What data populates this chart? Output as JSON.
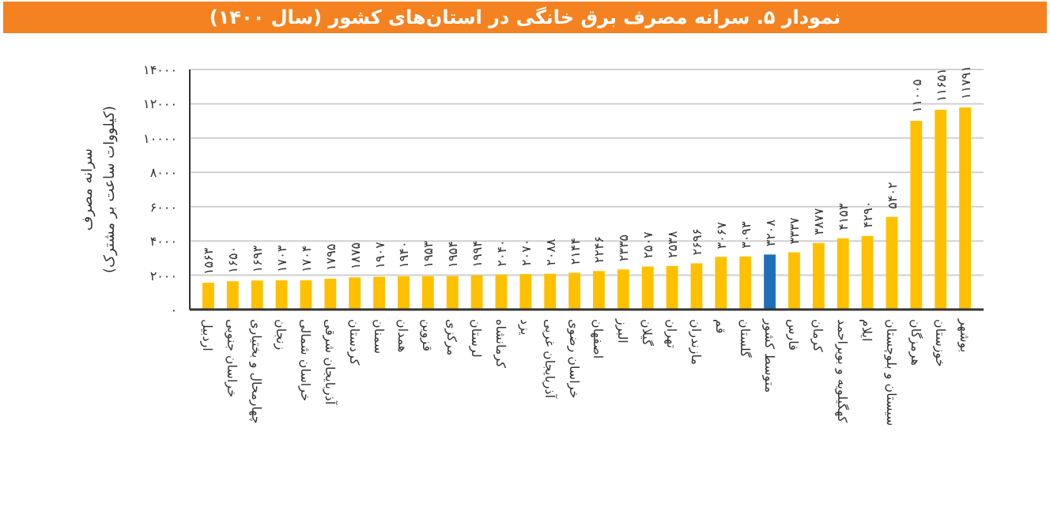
{
  "chart_data": {
    "type": "bar",
    "title": "نمودار ۵. سرانه مصرف برق خانگی در استان‌های کشور (سال ۱۴۰۰)",
    "ylabel": "سرانه مصرف (کیلووات ساعت بر مشترک)",
    "categories": [
      "اردبیل",
      "خراسان جنوبی",
      "چهارمحال و بختیاری",
      "زنجان",
      "خراسان شمالی",
      "آذربایجان شرقی",
      "کردستان",
      "سمنان",
      "همدان",
      "قزوین",
      "مرکزی",
      "لرستان",
      "کرمانشاه",
      "یزد",
      "آذربایجان غربی",
      "خراسان رضوی",
      "اصفهان",
      "البرز",
      "گیلان",
      "تهران",
      "مازندران",
      "قم",
      "گلستان",
      "متوسط کشور",
      "فارس",
      "کرمان",
      "کهگیلویه و بویراحمد",
      "ایلام",
      "سیستان و بلوچستان",
      "هرمزگان",
      "خوزستان",
      "بوشهر"
    ],
    "values": [
      1563,
      1650,
      1693,
      1703,
      1704,
      1795,
      1875,
      1907,
      1940,
      1953,
      1954,
      1994,
      2040,
      2070,
      2088,
      2144,
      2246,
      2335,
      2507,
      2538,
      2696,
      3067,
      3093,
      3208,
      3337,
      3877,
      4153,
      4290,
      5402,
      11005,
      11651,
      11791
    ],
    "value_labels": [
      "۱۵۶۳",
      "۱۶۵۰",
      "۱۶۹۳",
      "۱۷۰۳",
      "۱۷۰۴",
      "۱۷۹۵",
      "۱۸۷۵",
      "۱۹۰۷",
      "۱۹۴۰",
      "۱۹۵۳",
      "۱۹۵۴",
      "۱۹۹۴",
      "۲۰۴۰",
      "۲۰۷۰",
      "۲۰۸۸",
      "۲۱۴۴",
      "۲۲۴۶",
      "۲۳۳۵",
      "۲۵۰۷",
      "۲۵۳۸",
      "۲۶۹۶",
      "۳۰۶۷",
      "۳۰۹۳",
      "۳۲۰۸",
      "۳۳۳۷",
      "۳۸۷۷",
      "۴۱۵۳",
      "۴۲۹۰",
      "۵۴۰۲",
      "۱۱۰۰۵",
      "۱۱۶۵۱",
      "۱۱۷۹۱"
    ],
    "colors": [
      "#ffc000",
      "#ffc000",
      "#ffc000",
      "#ffc000",
      "#ffc000",
      "#ffc000",
      "#ffc000",
      "#ffc000",
      "#ffc000",
      "#ffc000",
      "#ffc000",
      "#ffc000",
      "#ffc000",
      "#ffc000",
      "#ffc000",
      "#ffc000",
      "#ffc000",
      "#ffc000",
      "#ffc000",
      "#ffc000",
      "#ffc000",
      "#ffc000",
      "#ffc000",
      "#1f6fb8",
      "#ffc000",
      "#ffc000",
      "#ffc000",
      "#ffc000",
      "#ffc000",
      "#ffc000",
      "#ffc000",
      "#ffc000"
    ],
    "ylim": [
      0,
      14000
    ],
    "yticks": [
      {
        "value": 0,
        "label": "۰"
      },
      {
        "value": 2000,
        "label": "۲۰۰۰"
      },
      {
        "value": 4000,
        "label": "۴۰۰۰"
      },
      {
        "value": 6000,
        "label": "۶۰۰۰"
      },
      {
        "value": 8000,
        "label": "۸۰۰۰"
      },
      {
        "value": 10000,
        "label": "۱۰۰۰۰"
      },
      {
        "value": 12000,
        "label": "۱۲۰۰۰"
      },
      {
        "value": 14000,
        "label": "۱۴۰۰۰"
      }
    ],
    "grid": "y"
  }
}
